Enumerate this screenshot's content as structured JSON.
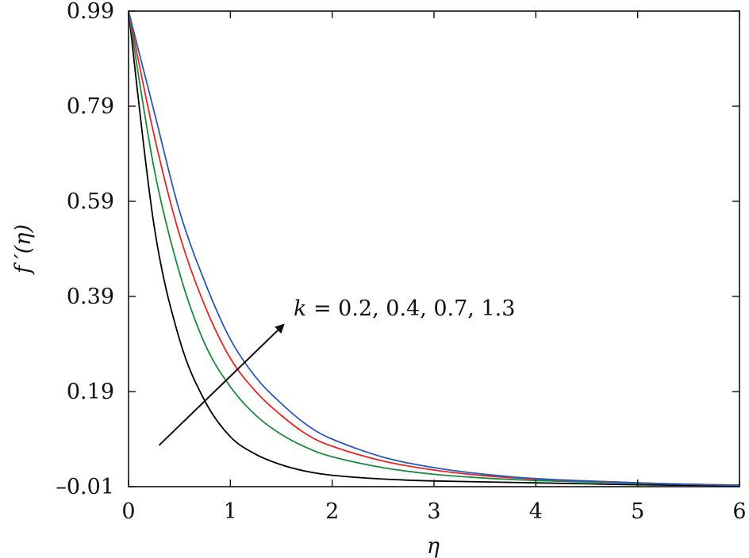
{
  "chart_data": {
    "type": "line",
    "xlabel": "η",
    "ylabel": "f ′(η)",
    "xlim": [
      0,
      6
    ],
    "ylim": [
      -0.01,
      0.99
    ],
    "x_ticks": [
      0,
      1,
      2,
      3,
      4,
      5,
      6
    ],
    "y_ticks": [
      -0.01,
      0.19,
      0.39,
      0.59,
      0.79,
      0.99
    ],
    "y_tick_labels": [
      "–0.01",
      "0.19",
      "0.39",
      "0.59",
      "0.79",
      "0.99"
    ],
    "grid": false,
    "annotation": {
      "symbol": "k",
      "text": " = 0.2, 0.4, 0.7, 1.3",
      "arrow_from": [
        0.3,
        0.077
      ],
      "arrow_to": [
        1.52,
        0.33
      ]
    },
    "x": [
      0,
      0.25,
      0.5,
      0.75,
      1,
      1.25,
      1.5,
      1.75,
      2,
      2.5,
      3,
      3.5,
      4,
      4.5,
      5,
      5.5,
      6
    ],
    "series": [
      {
        "color": "#000000",
        "values": [
          0.99,
          0.54,
          0.3,
          0.17,
          0.095,
          0.058,
          0.036,
          0.022,
          0.014,
          0.006,
          0.002,
          0.0,
          -0.002,
          -0.004,
          -0.006,
          -0.007,
          -0.008
        ]
      },
      {
        "color": "#1a8a3a",
        "values": [
          0.99,
          0.66,
          0.44,
          0.29,
          0.2,
          0.14,
          0.1,
          0.072,
          0.053,
          0.03,
          0.016,
          0.008,
          0.003,
          0.0,
          -0.003,
          -0.005,
          -0.007
        ]
      },
      {
        "color": "#e32626",
        "values": [
          0.99,
          0.73,
          0.52,
          0.37,
          0.26,
          0.19,
          0.14,
          0.1,
          0.075,
          0.044,
          0.025,
          0.013,
          0.006,
          0.002,
          -0.002,
          -0.005,
          -0.007
        ]
      },
      {
        "color": "#2a57b8",
        "values": [
          0.99,
          0.78,
          0.57,
          0.42,
          0.3,
          0.22,
          0.165,
          0.12,
          0.09,
          0.052,
          0.03,
          0.016,
          0.007,
          0.002,
          -0.002,
          -0.005,
          -0.007
        ]
      }
    ]
  }
}
